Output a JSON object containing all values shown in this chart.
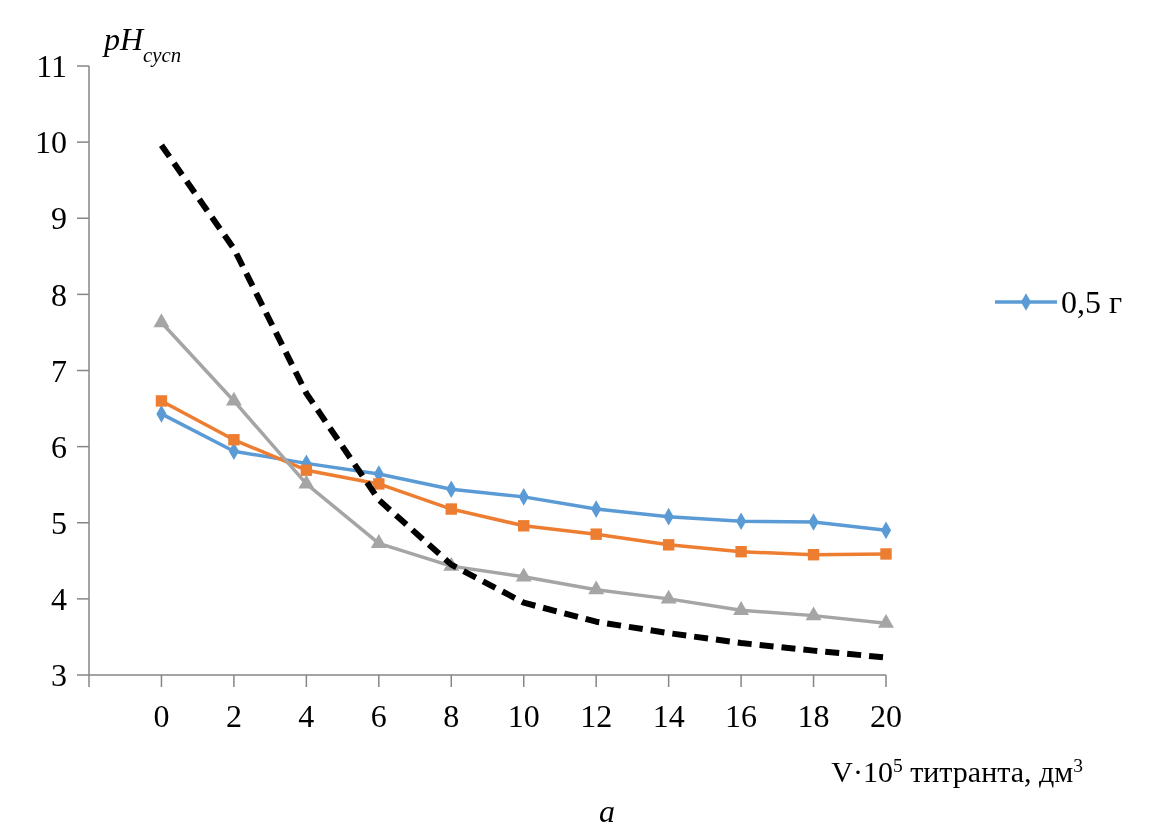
{
  "chart_data": {
    "type": "line",
    "ylabel": "pH$_{сусп}$",
    "xlabel": "V·10$^{5}$ титранта, дм$^{3}$",
    "annotations": [
      "а"
    ],
    "x": [
      0,
      2,
      4,
      6,
      8,
      10,
      12,
      14,
      16,
      18,
      20
    ],
    "xlim": [
      -2,
      20
    ],
    "xticks": [
      {
        "value": -2,
        "label": null
      },
      0,
      2,
      4,
      6,
      8,
      10,
      12,
      14,
      16,
      18,
      20
    ],
    "ylim": [
      3,
      11
    ],
    "yticks": [
      3,
      4,
      5,
      6,
      7,
      8,
      9,
      10,
      11
    ],
    "grid": false,
    "legend": "right",
    "series": [
      {
        "name": "0,5 г",
        "color": "#5b9bd5",
        "marker": "diamond",
        "values": [
          6.43,
          5.94,
          5.78,
          5.64,
          5.44,
          5.34,
          5.18,
          5.08,
          5.02,
          5.01,
          4.9
        ]
      },
      {
        "color": "#ed7d31",
        "marker": "square",
        "values": [
          6.6,
          6.09,
          5.69,
          5.51,
          5.18,
          4.96,
          4.85,
          4.71,
          4.62,
          4.58,
          4.59
        ]
      },
      {
        "color": "#a5a5a5",
        "marker": "triangle",
        "values": [
          7.63,
          6.6,
          5.51,
          4.73,
          4.43,
          4.29,
          4.12,
          4.0,
          3.85,
          3.78,
          3.68
        ]
      },
      {
        "color": "#000000",
        "marker": "none",
        "line_style": "dashed",
        "values": [
          9.96,
          8.6,
          6.7,
          5.3,
          4.45,
          3.95,
          3.7,
          3.55,
          3.42,
          3.32,
          3.23
        ]
      }
    ]
  }
}
